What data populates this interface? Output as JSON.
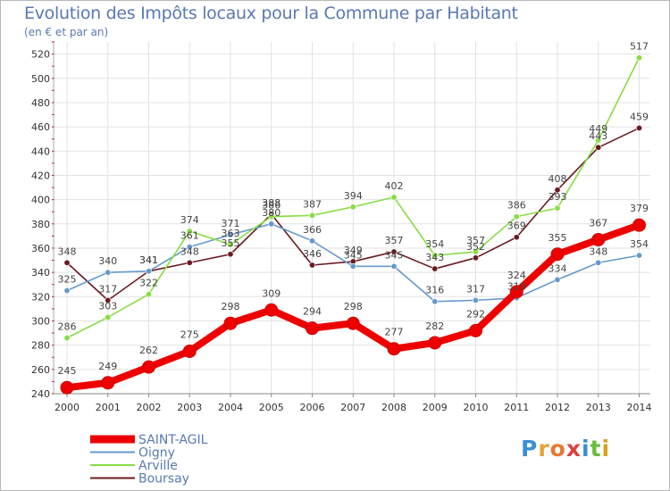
{
  "chart_data": {
    "type": "line",
    "title": "Evolution des Impôts locaux pour la Commune par Habitant",
    "subtitle": "(en € et par an)",
    "xlabel": "",
    "ylabel": "",
    "ylim": [
      240,
      530
    ],
    "yticks": [
      240,
      260,
      280,
      300,
      320,
      340,
      360,
      380,
      400,
      420,
      440,
      460,
      480,
      500,
      520
    ],
    "categories": [
      "2000",
      "2001",
      "2002",
      "2003",
      "2004",
      "2005",
      "2006",
      "2007",
      "2008",
      "2009",
      "2010",
      "2011",
      "2012",
      "2013",
      "2014"
    ],
    "grid": true,
    "legend_position": "bottom-left",
    "series": [
      {
        "name": "SAINT-AGIL",
        "color": "#ee0000",
        "values": [
          245,
          249,
          262,
          275,
          298,
          309,
          294,
          298,
          277,
          282,
          292,
          324,
          355,
          367,
          379
        ]
      },
      {
        "name": "Oigny",
        "color": "#6699cc",
        "values": [
          325,
          340,
          341,
          361,
          371,
          380,
          366,
          345,
          345,
          316,
          317,
          319,
          334,
          348,
          354
        ]
      },
      {
        "name": "Arville",
        "color": "#88dd44",
        "values": [
          286,
          303,
          322,
          374,
          363,
          386,
          387,
          394,
          402,
          354,
          357,
          386,
          393,
          449,
          517
        ]
      },
      {
        "name": "Boursay",
        "color": "#6b1a22",
        "values": [
          348,
          317,
          341,
          348,
          355,
          388,
          346,
          349,
          357,
          343,
          352,
          369,
          408,
          443,
          459
        ]
      }
    ]
  },
  "logo": {
    "letters": [
      "P",
      "r",
      "o",
      "x",
      "i",
      "t",
      "i"
    ],
    "colors": [
      "#3a8fd6",
      "#e8a23a",
      "#e87830",
      "#e04040",
      "#3a8fd6",
      "#6cbb3c",
      "#d6a020"
    ]
  }
}
